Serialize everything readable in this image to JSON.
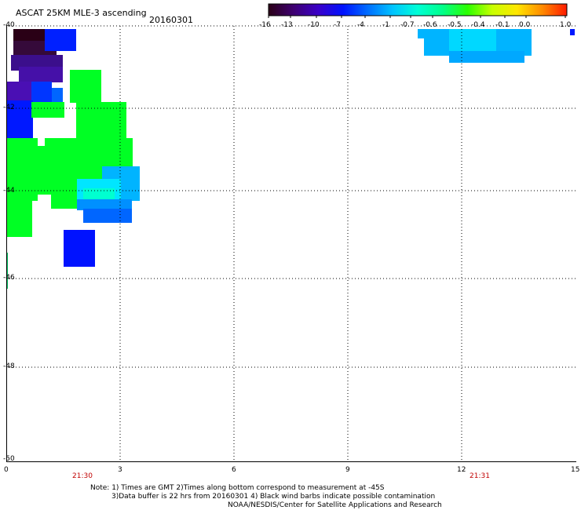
{
  "header": {
    "title": "ASCAT 25KM MLE-3 ascending",
    "date": "20160301"
  },
  "colorbar": {
    "labels": [
      "-16",
      "-13",
      "-10",
      "-7",
      "-4",
      "-1",
      "-0.7",
      "-0.6",
      "-0.5",
      "-0.4",
      "-0.1",
      "0.0",
      "1.0"
    ],
    "colors": [
      "#2a0016",
      "#3e0070",
      "#3a00c8",
      "#0012ff",
      "#006eff",
      "#00c4ff",
      "#00ffd6",
      "#00ff8a",
      "#2aff00",
      "#c8ff00",
      "#ffe600",
      "#ff8c00",
      "#ff1a00"
    ]
  },
  "axes": {
    "lat_labels": [
      "-40",
      "-42",
      "-44",
      "-46",
      "-48",
      "-50"
    ],
    "lon_labels": [
      "0",
      "3",
      "6",
      "9",
      "12",
      "15"
    ]
  },
  "time_marks": [
    "21:30",
    "21:31"
  ],
  "notes": {
    "line1": "Note: 1) Times are GMT 2)Times along bottom correspond to measurement at -45S",
    "line2": "3)Data buffer is 22 hrs from 20160301 4) Black wind barbs indicate possible contamination",
    "line3": "NOAA/NESDIS/Center for Satellite Applications and Research"
  },
  "legend_colors": {
    "darkest": "#2a0016",
    "indigo": "#3b0f8c",
    "violet": "#4a0fb4",
    "blue": "#0015ff",
    "mid_blue": "#0066ff",
    "sky": "#00b4ff",
    "cyan": "#00e6ff",
    "green": "#00ff24"
  }
}
